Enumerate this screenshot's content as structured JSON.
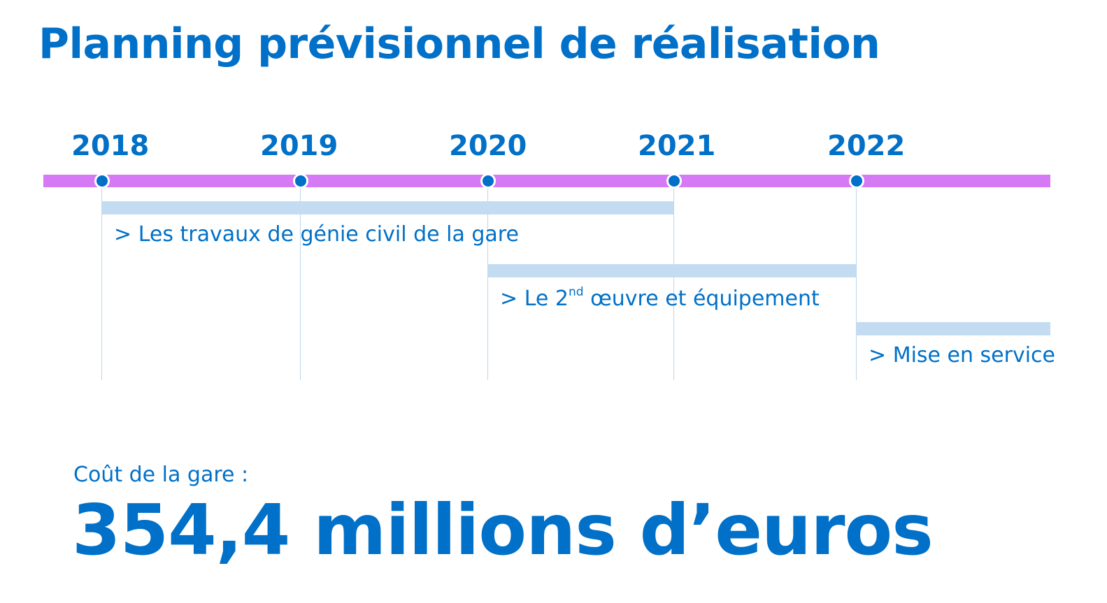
{
  "title": "Planning prévisionnel de réalisation",
  "years": [
    "2018",
    "2019",
    "2020",
    "2021",
    "2022"
  ],
  "tasks": [
    {
      "prefix": ">",
      "label": "Les travaux de génie civil de la gare",
      "start": "2018",
      "end": "2021"
    },
    {
      "prefix": ">",
      "label_before": "Le 2",
      "label_sup": "nd",
      "label_after": " œuvre et équipement",
      "start": "2020",
      "end": "2022"
    },
    {
      "prefix": ">",
      "label": "Mise en service",
      "start": "2022",
      "end": ""
    }
  ],
  "cost": {
    "label": "Coût de la gare :",
    "value": "354,4 millions d’euros"
  },
  "colors": {
    "accent": "#0070c8",
    "timeline": "#d57af4",
    "task_bar": "#c3dcf1",
    "guide": "#b9d8ef"
  }
}
